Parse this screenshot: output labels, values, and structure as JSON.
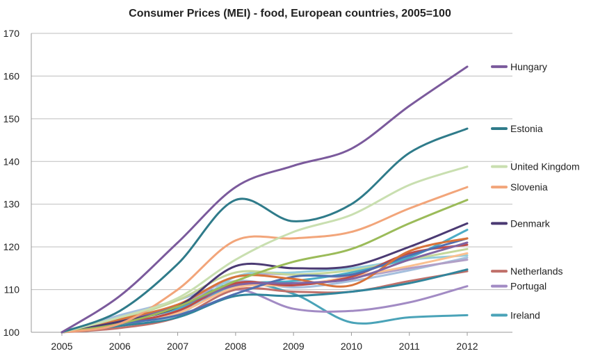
{
  "chart_data": {
    "type": "line",
    "title": "Consumer Prices (MEI) - food, European countries, 2005=100",
    "xlabel": "",
    "ylabel": "",
    "x": [
      "2005",
      "2006",
      "2007",
      "2008",
      "2009",
      "2010",
      "2011",
      "2012"
    ],
    "ylim": [
      100,
      170
    ],
    "yticks": [
      100,
      110,
      120,
      130,
      140,
      150,
      160,
      170
    ],
    "grid": "horizontal",
    "legend": "right, labels at line ends",
    "series": [
      {
        "name": "Hungary",
        "color": "#7b5a9c",
        "values": [
          100,
          108.5,
          121,
          134,
          139,
          143,
          153,
          162.2
        ],
        "labeled": true
      },
      {
        "name": "Estonia",
        "color": "#2f7b8a",
        "values": [
          100,
          105,
          116,
          131,
          126,
          130,
          142,
          147.7
        ],
        "labeled": true
      },
      {
        "name": "United Kingdom",
        "color": "#c9dfb0",
        "values": [
          100,
          103.5,
          108,
          117,
          123.5,
          127.5,
          134.5,
          138.8
        ],
        "labeled": true
      },
      {
        "name": "Slovenia",
        "color": "#f2a57a",
        "values": [
          100,
          102,
          110,
          121.5,
          122,
          123.5,
          129,
          134
        ],
        "labeled": true
      },
      {
        "name": "",
        "color": "#9bbb59",
        "values": [
          100,
          102,
          106,
          112,
          116.5,
          119.5,
          125.5,
          131
        ],
        "labeled": false
      },
      {
        "name": "Denmark",
        "color": "#4b3a73",
        "values": [
          100,
          102.5,
          106,
          115.5,
          115,
          115.5,
          120,
          125.5
        ],
        "labeled": true
      },
      {
        "name": "",
        "color": "#8064a2",
        "values": [
          100,
          102.5,
          106,
          111,
          111.5,
          112.5,
          117,
          121
        ],
        "labeled": false
      },
      {
        "name": "",
        "color": "#d8733a",
        "values": [
          100,
          103,
          106.5,
          113,
          112.5,
          111,
          119,
          122
        ],
        "labeled": false
      },
      {
        "name": "",
        "color": "#4f6fb0",
        "values": [
          100,
          102,
          104,
          109,
          113,
          113.5,
          118,
          122
        ],
        "labeled": false
      },
      {
        "name": "",
        "color": "#be4b48",
        "values": [
          100,
          102,
          105,
          111.5,
          111,
          113,
          118.5,
          120.5
        ],
        "labeled": false
      },
      {
        "name": "",
        "color": "#4bacc6",
        "values": [
          100,
          102.5,
          105.5,
          111,
          112,
          114,
          117.5,
          124
        ],
        "labeled": false
      },
      {
        "name": "",
        "color": "#c4d79b",
        "values": [
          100,
          103,
          107.5,
          114,
          113.5,
          114.5,
          117,
          119.5
        ],
        "labeled": false
      },
      {
        "name": "",
        "color": "#fac090",
        "values": [
          100,
          102,
          104.5,
          110.5,
          111,
          113,
          115.5,
          118.5
        ],
        "labeled": false
      },
      {
        "name": "",
        "color": "#93cddd",
        "values": [
          100,
          102.5,
          104,
          113,
          114,
          115,
          117,
          118
        ],
        "labeled": false
      },
      {
        "name": "",
        "color": "#b1a0c7",
        "values": [
          100,
          103,
          106,
          113,
          113.5,
          113,
          115,
          117
        ],
        "labeled": false
      },
      {
        "name": "",
        "color": "#a5bfdd",
        "values": [
          100,
          104,
          107.5,
          112,
          110.5,
          112,
          114.5,
          117.5
        ],
        "labeled": false
      },
      {
        "name": "",
        "color": "#31859c",
        "values": [
          100,
          101.5,
          103.5,
          108.5,
          108.5,
          109.5,
          111.5,
          114.7
        ],
        "labeled": false
      },
      {
        "name": "Netherlands",
        "color": "#c0706a",
        "values": [
          100,
          101,
          103.5,
          110,
          109.5,
          109.5,
          112,
          114.3
        ],
        "labeled": true
      },
      {
        "name": "Portugal",
        "color": "#a28bc4",
        "values": [
          100,
          101.5,
          105,
          110,
          105.5,
          105,
          107,
          110.8
        ],
        "labeled": true
      },
      {
        "name": "Ireland",
        "color": "#4aa3b8",
        "values": [
          100,
          102,
          106,
          111.5,
          109,
          102.3,
          103.5,
          104
        ],
        "labeled": true
      }
    ]
  }
}
